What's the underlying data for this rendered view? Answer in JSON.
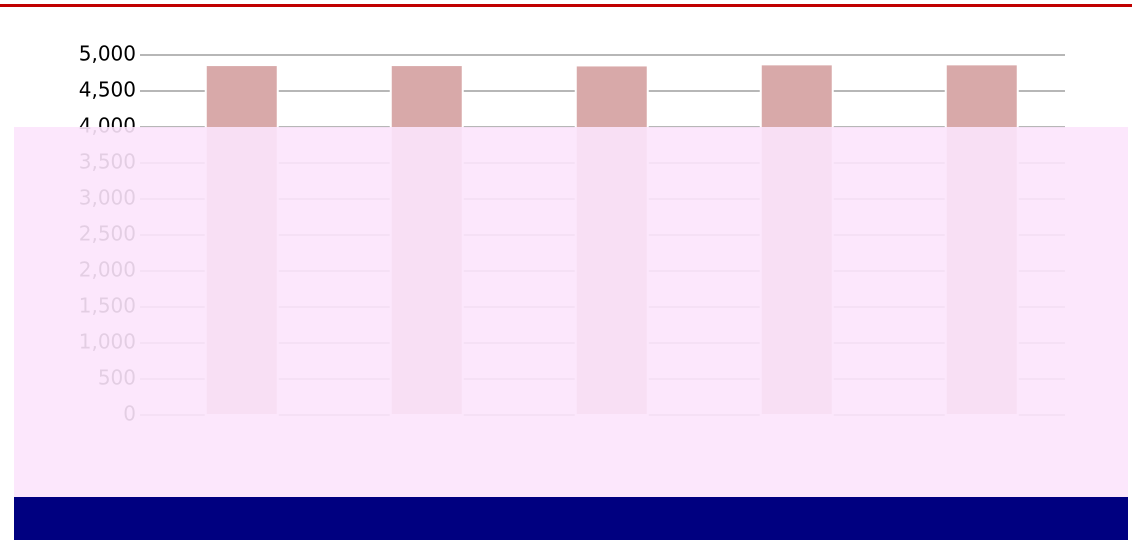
{
  "chart_data": {
    "type": "bar",
    "values": [
      4860,
      4860,
      4855,
      4870,
      4870
    ],
    "color": "#d8a9a9",
    "ylim": [
      0,
      5000
    ],
    "yticks": [
      {
        "value": 0,
        "label": "0"
      },
      {
        "value": 500,
        "label": "500"
      },
      {
        "value": 1000,
        "label": "1,000"
      },
      {
        "value": 1500,
        "label": "1,500"
      },
      {
        "value": 2000,
        "label": "2,000"
      },
      {
        "value": 2500,
        "label": "2,500"
      },
      {
        "value": 3000,
        "label": "3,000"
      },
      {
        "value": 3500,
        "label": "3,500"
      },
      {
        "value": 4000,
        "label": "4,000"
      },
      {
        "value": 4500,
        "label": "4,500"
      },
      {
        "value": 5000,
        "label": "5,000"
      }
    ],
    "grid": true
  }
}
